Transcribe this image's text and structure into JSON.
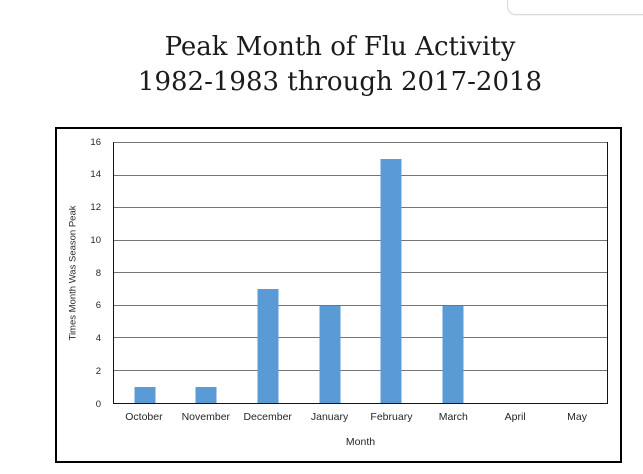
{
  "title": {
    "line1": "Peak Month of Flu Activity",
    "line2": "1982-1983 through 2017-2018"
  },
  "chart_data": {
    "type": "bar",
    "title": "Peak Month of Flu Activity 1982-1983 through 2017-2018",
    "categories": [
      "October",
      "November",
      "December",
      "January",
      "February",
      "March",
      "April",
      "May"
    ],
    "values": [
      1,
      1,
      7,
      6,
      15,
      6,
      0,
      0
    ],
    "xlabel": "Month",
    "ylabel": "Times Month Was Season Peak",
    "ylim": [
      0,
      16
    ],
    "ytick_step": 2,
    "yticks": [
      0,
      2,
      4,
      6,
      8,
      10,
      12,
      14,
      16
    ],
    "grid": true,
    "legend": "none",
    "bar_color": "#5B9BD5",
    "gridline_color": "#757575",
    "axis_color": "#141414",
    "frame_color": "#000000"
  }
}
